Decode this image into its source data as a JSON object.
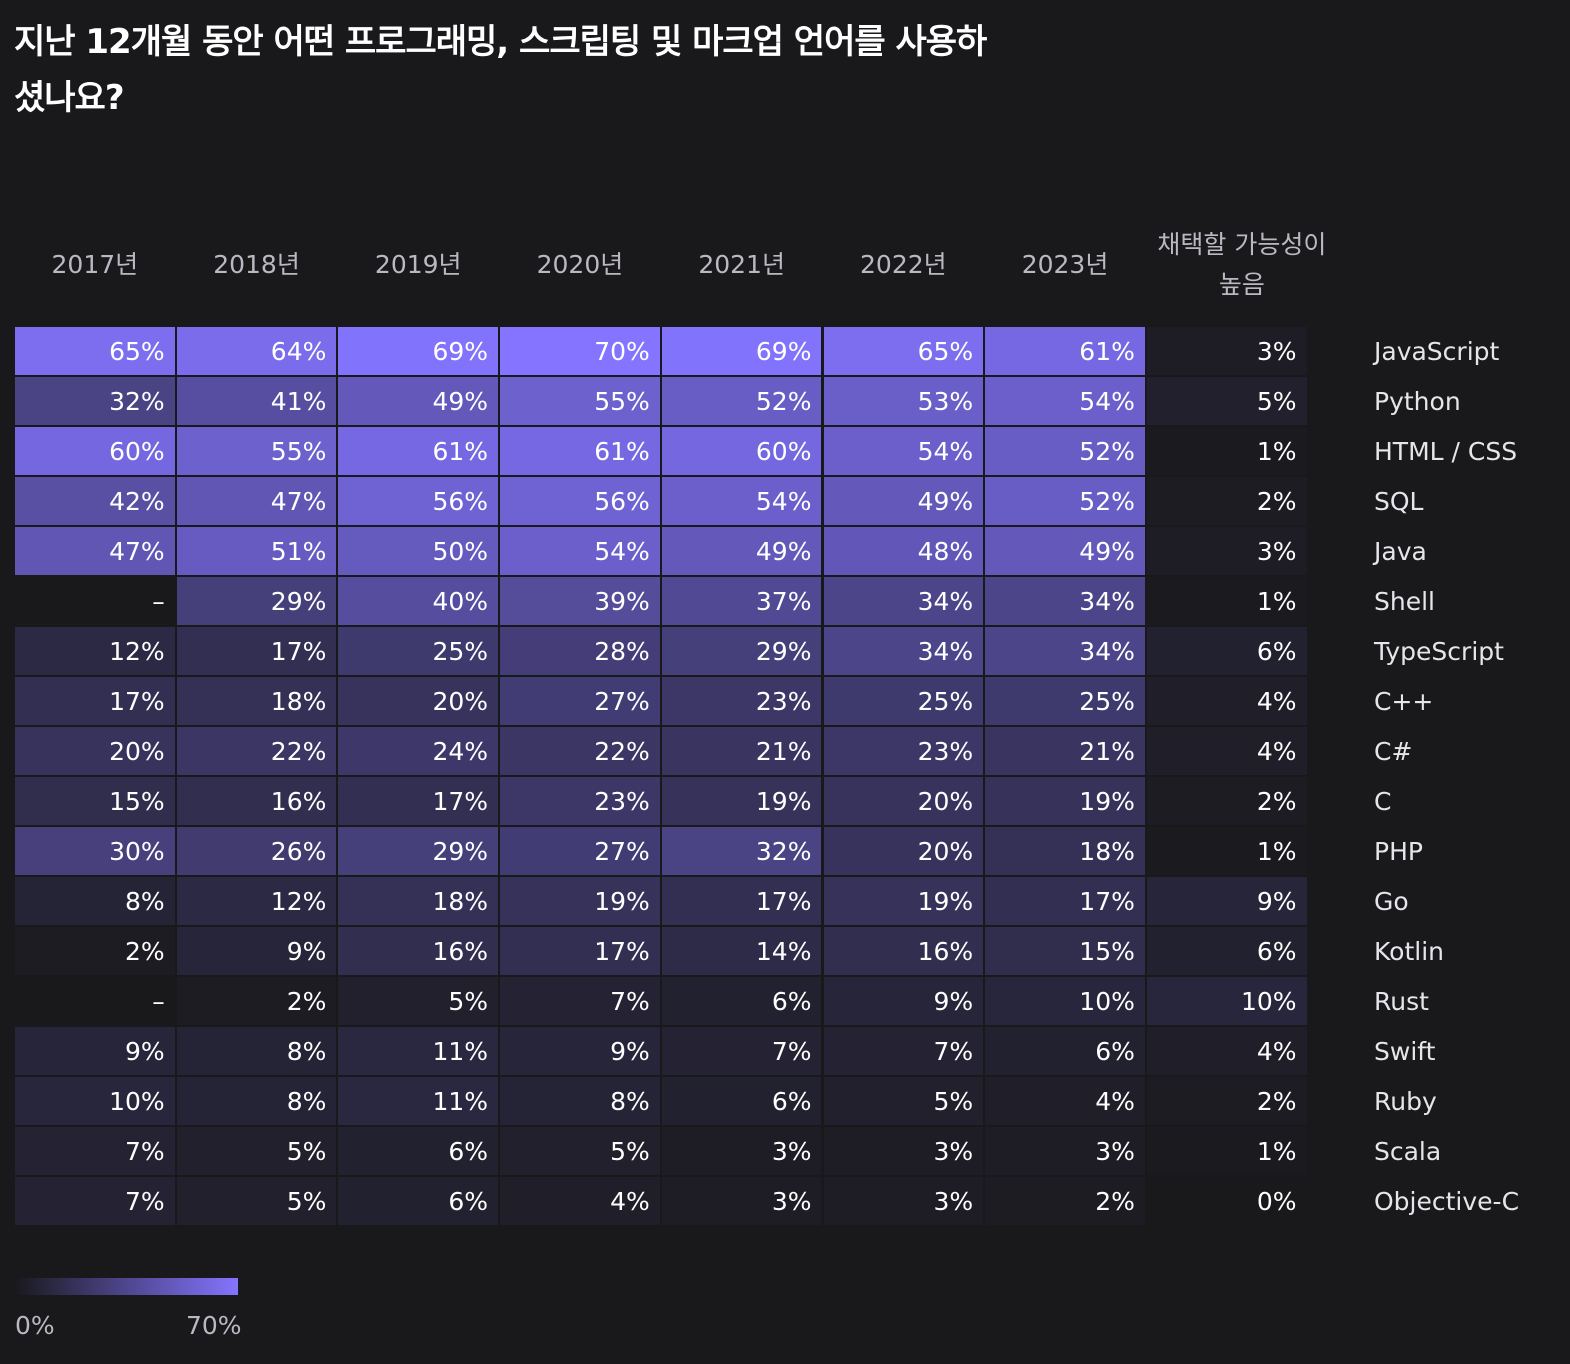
{
  "title": "지난 12개월 동안 어떤 프로그래밍, 스크립팅 및 마크업 언어를 사용하셨나요?",
  "chart_data": {
    "type": "heatmap",
    "title": "지난 12개월 동안 어떤 프로그래밍, 스크립팅 및 마크업 언어를 사용하셨나요?",
    "columns": [
      "2017년",
      "2018년",
      "2019년",
      "2020년",
      "2021년",
      "2022년",
      "2023년",
      "채택할 가능성이 높음"
    ],
    "colorscale": {
      "min": 0,
      "max": 70,
      "min_label": "0%",
      "max_label": "70%",
      "min_color": "#19191c",
      "max_color": "#8474ff"
    },
    "rows": [
      {
        "label": "JavaScript",
        "values": [
          65,
          64,
          69,
          70,
          69,
          65,
          61,
          3
        ]
      },
      {
        "label": "Python",
        "values": [
          32,
          41,
          49,
          55,
          52,
          53,
          54,
          5
        ]
      },
      {
        "label": "HTML / CSS",
        "values": [
          60,
          55,
          61,
          61,
          60,
          54,
          52,
          1
        ]
      },
      {
        "label": "SQL",
        "values": [
          42,
          47,
          56,
          56,
          54,
          49,
          52,
          2
        ]
      },
      {
        "label": "Java",
        "values": [
          47,
          51,
          50,
          54,
          49,
          48,
          49,
          3
        ]
      },
      {
        "label": "Shell",
        "values": [
          null,
          29,
          40,
          39,
          37,
          34,
          34,
          1
        ]
      },
      {
        "label": "TypeScript",
        "values": [
          12,
          17,
          25,
          28,
          29,
          34,
          34,
          6
        ]
      },
      {
        "label": "C++",
        "values": [
          17,
          18,
          20,
          27,
          23,
          25,
          25,
          4
        ]
      },
      {
        "label": "C#",
        "values": [
          20,
          22,
          24,
          22,
          21,
          23,
          21,
          4
        ]
      },
      {
        "label": "C",
        "values": [
          15,
          16,
          17,
          23,
          19,
          20,
          19,
          2
        ]
      },
      {
        "label": "PHP",
        "values": [
          30,
          26,
          29,
          27,
          32,
          20,
          18,
          1
        ]
      },
      {
        "label": "Go",
        "values": [
          8,
          12,
          18,
          19,
          17,
          19,
          17,
          9
        ]
      },
      {
        "label": "Kotlin",
        "values": [
          2,
          9,
          16,
          17,
          14,
          16,
          15,
          6
        ]
      },
      {
        "label": "Rust",
        "values": [
          null,
          2,
          5,
          7,
          6,
          9,
          10,
          10
        ]
      },
      {
        "label": "Swift",
        "values": [
          9,
          8,
          11,
          9,
          7,
          7,
          6,
          4
        ]
      },
      {
        "label": "Ruby",
        "values": [
          10,
          8,
          11,
          8,
          6,
          5,
          4,
          2
        ]
      },
      {
        "label": "Scala",
        "values": [
          7,
          5,
          6,
          5,
          3,
          3,
          3,
          1
        ]
      },
      {
        "label": "Objective-C",
        "values": [
          7,
          5,
          6,
          4,
          3,
          3,
          2,
          0
        ]
      }
    ],
    "missing_label": "–",
    "value_suffix": "%"
  }
}
